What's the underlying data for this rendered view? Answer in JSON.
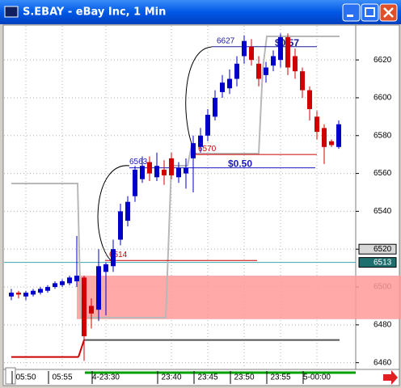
{
  "window": {
    "title": "S.EBAY - eBay Inc, 1 Min"
  },
  "chart_data": {
    "type": "candlestick",
    "categories": [
      null,
      null,
      "05:50",
      null,
      null,
      null,
      null,
      "05:55",
      null,
      null,
      null,
      null,
      null,
      "4-23:30",
      null,
      null,
      null,
      null,
      null,
      null,
      null,
      null,
      "23:40",
      null,
      null,
      null,
      null,
      "23:45",
      null,
      null,
      null,
      null,
      "23:50",
      null,
      null,
      null,
      null,
      "23:55",
      null,
      null,
      null,
      null,
      "5-00:00",
      null,
      null,
      null
    ],
    "open": [
      6495,
      6497,
      6495,
      6496,
      6497,
      6498,
      6500,
      6501,
      6502,
      6503,
      6505,
      6490,
      6488,
      6508,
      6511,
      6525,
      6535,
      6548,
      6557,
      6566,
      6558,
      6562,
      6568,
      6558,
      6560,
      6568,
      6574,
      6580,
      6590,
      6603,
      6605,
      6610,
      6622,
      6627,
      6618,
      6612,
      6617,
      6620,
      6632,
      6622,
      6614,
      6604,
      6590,
      6584,
      6577,
      6574
    ],
    "high": [
      6499,
      6498,
      6498,
      6499,
      6500,
      6501,
      6503,
      6504,
      6506,
      6527,
      6506,
      6494,
      6520,
      6513,
      6525,
      6544,
      6548,
      6564,
      6569,
      6569,
      6571,
      6567,
      6571,
      6566,
      6568,
      6580,
      6584,
      6594,
      6604,
      6612,
      6615,
      6622,
      6633,
      6631,
      6622,
      6619,
      6625,
      6634,
      6634,
      6626,
      6616,
      6606,
      6593,
      6586,
      6578,
      6588
    ],
    "low": [
      6493,
      6494,
      6493,
      6495,
      6496,
      6497,
      6499,
      6500,
      6501,
      6500,
      6461,
      6478,
      6482,
      6485,
      6508,
      6522,
      6532,
      6545,
      6555,
      6556,
      6556,
      6554,
      6557,
      6555,
      6552,
      6550,
      6571,
      6577,
      6588,
      6600,
      6602,
      6606,
      6618,
      6617,
      6606,
      6608,
      6614,
      6616,
      6612,
      6610,
      6600,
      6588,
      6578,
      6565,
      6574,
      6573
    ],
    "close": [
      6497,
      6496,
      6497,
      6498,
      6499,
      6500,
      6502,
      6503,
      6505,
      6506,
      6474,
      6486,
      6511,
      6512,
      6520,
      6540,
      6545,
      6562,
      6564,
      6560,
      6564,
      6559,
      6559,
      6563,
      6563,
      6576,
      6580,
      6591,
      6600,
      6608,
      6610,
      6618,
      6630,
      6620,
      6610,
      6616,
      6622,
      6632,
      6616,
      6614,
      6604,
      6594,
      6582,
      6574,
      6575,
      6586
    ],
    "up_color": "#0000c8",
    "down_color": "#d00000",
    "ylim": [
      6457.3,
      6638
    ],
    "yticks": [
      6460,
      6480,
      6500,
      6520,
      6540,
      6560,
      6580,
      6600,
      6620
    ],
    "grid": true,
    "band": {
      "from": 6483,
      "to": 6506,
      "color": "#ff9a9a"
    },
    "markers": [
      {
        "value": 6520,
        "color": "#d8d8d8"
      },
      {
        "value": 6513,
        "color": "#1f6f6f"
      }
    ],
    "levels": [
      {
        "value": 6513,
        "color": "#3aa6b0"
      },
      {
        "value": 6463,
        "color": "#cc0000"
      },
      {
        "value": 6472,
        "color": "#555555"
      }
    ],
    "annotations": [
      {
        "value": 6627,
        "color": "#1a1a9a",
        "note": "$0.57"
      },
      {
        "value": 6563,
        "color": "#1a1ac0",
        "note": "$0.50"
      },
      {
        "value": 6570,
        "color": "#cc0000"
      },
      {
        "value": 6514,
        "color": "#cc0000"
      }
    ]
  }
}
